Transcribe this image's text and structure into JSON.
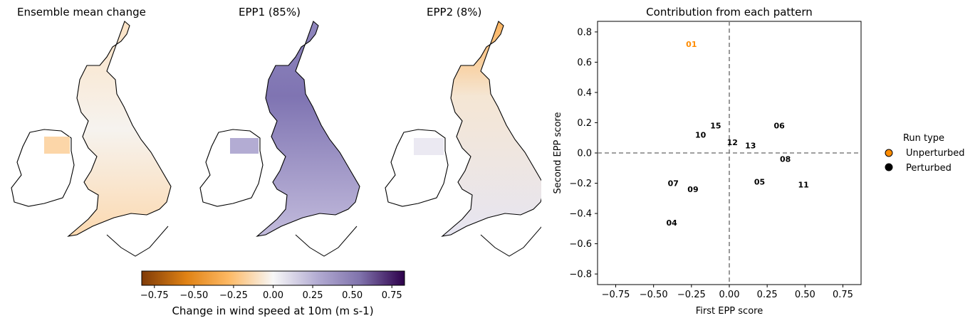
{
  "maps": {
    "titles": [
      "Ensemble mean change",
      "EPP1 (85%)",
      "EPP2 (8%)"
    ],
    "colorbar": {
      "label": "Change in wind speed at 10m (m s-1)",
      "ticks": [
        "−0.75",
        "−0.50",
        "−0.25",
        "0.00",
        "0.25",
        "0.50",
        "0.75"
      ],
      "range": [
        -0.83,
        0.83
      ],
      "colormap": "PuOr",
      "colors": [
        "#7f3b08",
        "#e08214",
        "#fdb863",
        "#f7f7f7",
        "#b2abd2",
        "#8073ac",
        "#2d004b"
      ]
    }
  },
  "chart_data": {
    "type": "scatter",
    "title": "Contribution from each pattern",
    "xlabel": "First EPP score",
    "ylabel": "Second EPP score",
    "xlim": [
      -0.87,
      0.87
    ],
    "ylim": [
      -0.87,
      0.87
    ],
    "xticks": [
      "−0.75",
      "−0.50",
      "−0.25",
      "0.00",
      "0.25",
      "0.50",
      "0.75"
    ],
    "yticks": [
      "−0.8",
      "−0.6",
      "−0.4",
      "−0.2",
      "0.0",
      "0.2",
      "0.4",
      "0.6",
      "0.8"
    ],
    "reference_lines": {
      "x": 0,
      "y": 0,
      "style": "dashed",
      "color": "#808080"
    },
    "points": [
      {
        "label": "01",
        "x": -0.25,
        "y": 0.72,
        "run_type": "Unperturbed"
      },
      {
        "label": "04",
        "x": -0.38,
        "y": -0.46,
        "run_type": "Perturbed"
      },
      {
        "label": "05",
        "x": 0.2,
        "y": -0.19,
        "run_type": "Perturbed"
      },
      {
        "label": "06",
        "x": 0.33,
        "y": 0.18,
        "run_type": "Perturbed"
      },
      {
        "label": "07",
        "x": -0.37,
        "y": -0.2,
        "run_type": "Perturbed"
      },
      {
        "label": "08",
        "x": 0.37,
        "y": -0.04,
        "run_type": "Perturbed"
      },
      {
        "label": "09",
        "x": -0.24,
        "y": -0.24,
        "run_type": "Perturbed"
      },
      {
        "label": "10",
        "x": -0.19,
        "y": 0.12,
        "run_type": "Perturbed"
      },
      {
        "label": "11",
        "x": 0.49,
        "y": -0.21,
        "run_type": "Perturbed"
      },
      {
        "label": "12",
        "x": 0.02,
        "y": 0.07,
        "run_type": "Perturbed"
      },
      {
        "label": "13",
        "x": 0.14,
        "y": 0.05,
        "run_type": "Perturbed"
      },
      {
        "label": "15",
        "x": -0.09,
        "y": 0.18,
        "run_type": "Perturbed"
      }
    ],
    "legend": {
      "title": "Run type",
      "placement": "right",
      "entries": [
        {
          "name": "Unperturbed",
          "color": "#ff8c00"
        },
        {
          "name": "Perturbed",
          "color": "#000000"
        }
      ]
    }
  }
}
